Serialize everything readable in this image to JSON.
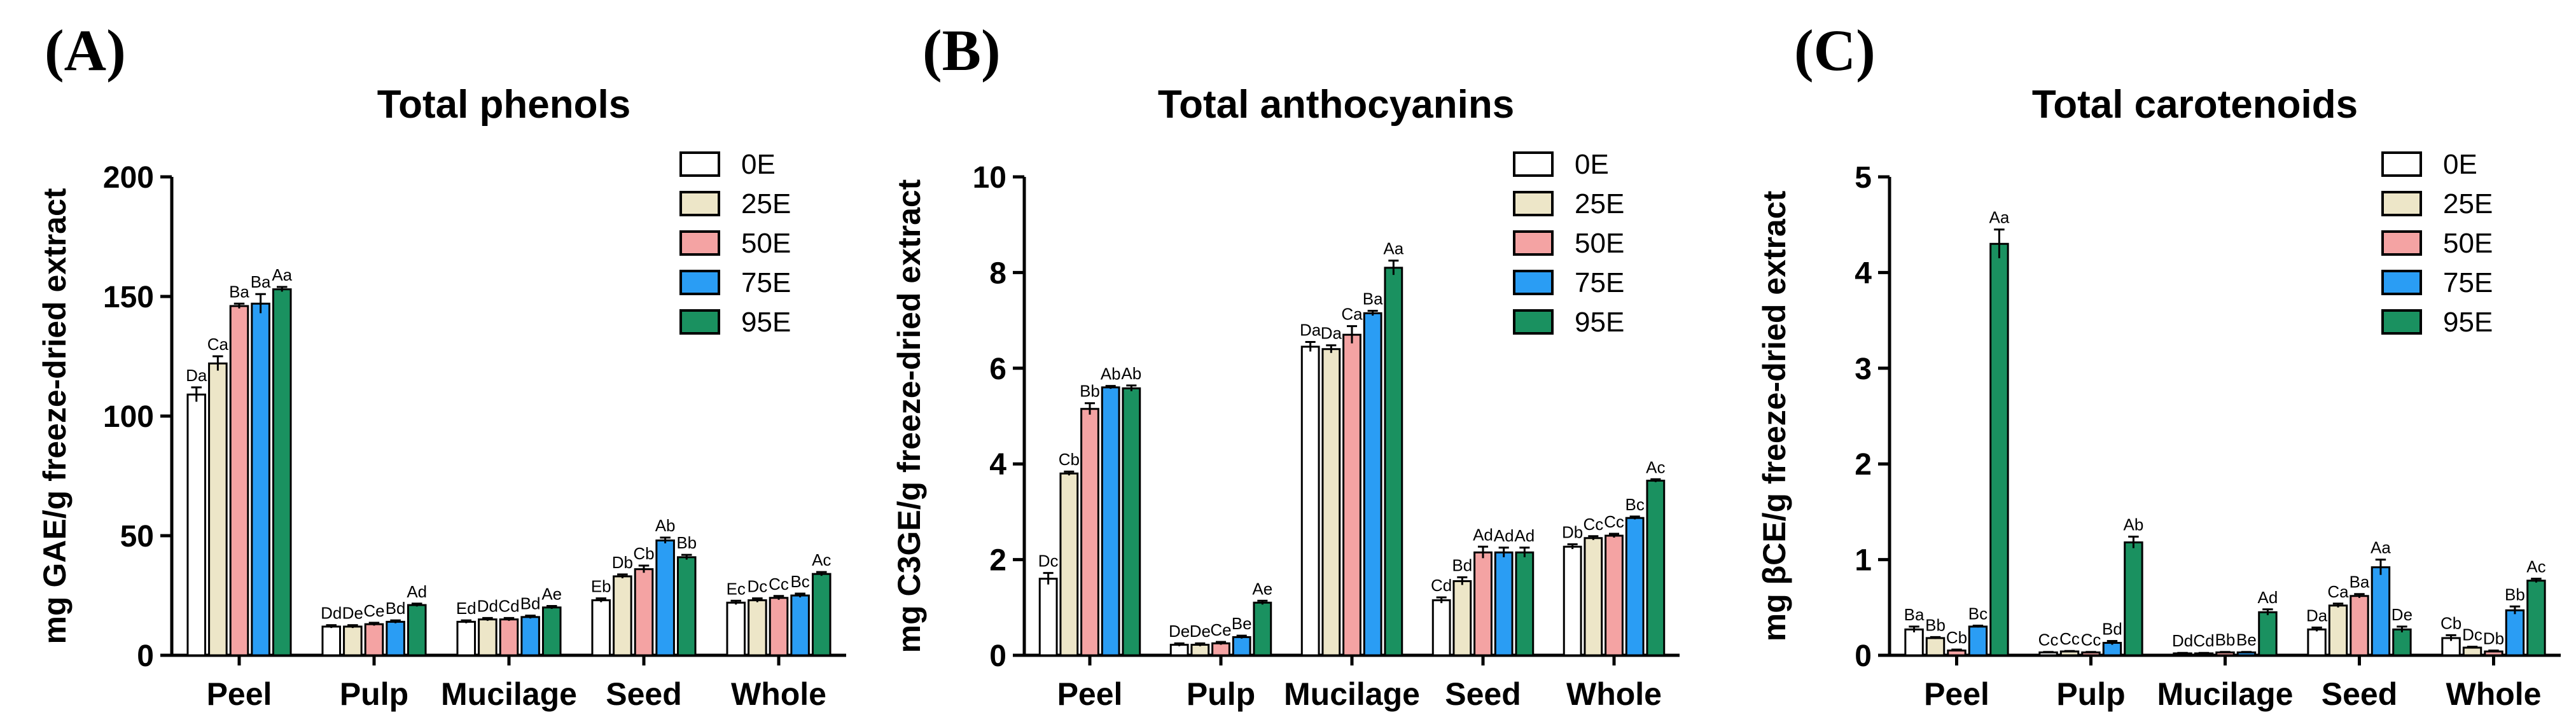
{
  "chart_data": [
    {
      "type": "bar",
      "panel": "(A)",
      "title": "Total phenols",
      "ylabel": "mg GAE/g freeze-dried extract",
      "ylim": [
        0,
        200
      ],
      "yticks": [
        0,
        50,
        100,
        150,
        200
      ],
      "categories": [
        "Peel",
        "Pulp",
        "Mucilage",
        "Seed",
        "Whole"
      ],
      "legend_position": "top-right",
      "series": [
        {
          "name": "0E",
          "color": "#ffffff",
          "values": [
            109,
            12,
            14,
            23,
            22
          ],
          "errors": [
            3,
            0.6,
            0.6,
            0.8,
            0.8
          ],
          "labels": [
            "Da",
            "Dd",
            "Ed",
            "Eb",
            "Ec"
          ]
        },
        {
          "name": "25E",
          "color": "#ede6c8",
          "values": [
            122,
            12,
            15,
            33,
            23
          ],
          "errors": [
            3,
            0.6,
            0.6,
            0.8,
            0.8
          ],
          "labels": [
            "Ca",
            "De",
            "Dd",
            "Db",
            "Dc"
          ]
        },
        {
          "name": "50E",
          "color": "#f4a3a3",
          "values": [
            146,
            13,
            15,
            36,
            24
          ],
          "errors": [
            1,
            0.6,
            0.6,
            1.5,
            0.8
          ],
          "labels": [
            "Ba",
            "Ce",
            "Cd",
            "Cb",
            "Cc"
          ]
        },
        {
          "name": "75E",
          "color": "#2a9df4",
          "values": [
            147,
            14,
            16,
            48,
            25
          ],
          "errors": [
            4,
            0.6,
            0.6,
            1.2,
            0.8
          ],
          "labels": [
            "Ba",
            "Bd",
            "Bd",
            "Ab",
            "Bc"
          ]
        },
        {
          "name": "95E",
          "color": "#1a9160",
          "values": [
            153,
            21,
            20,
            41,
            34
          ],
          "errors": [
            1,
            0.6,
            0.6,
            1.0,
            0.8
          ],
          "labels": [
            "Aa",
            "Ad",
            "Ae",
            "Bb",
            "Ac"
          ]
        }
      ]
    },
    {
      "type": "bar",
      "panel": "(B)",
      "title": "Total anthocyanins",
      "ylabel": "mg C3GE/g freeze-dried extract",
      "ylim": [
        0,
        10
      ],
      "yticks": [
        0,
        2,
        4,
        6,
        8,
        10
      ],
      "categories": [
        "Peel",
        "Pulp",
        "Mucilage",
        "Seed",
        "Whole"
      ],
      "legend_position": "top-right",
      "series": [
        {
          "name": "0E",
          "color": "#ffffff",
          "values": [
            1.6,
            0.22,
            6.45,
            1.15,
            2.27
          ],
          "errors": [
            0.12,
            0.03,
            0.1,
            0.06,
            0.05
          ],
          "labels": [
            "Dc",
            "De",
            "Da",
            "Cd",
            "Db"
          ]
        },
        {
          "name": "25E",
          "color": "#ede6c8",
          "values": [
            3.8,
            0.22,
            6.4,
            1.55,
            2.45
          ],
          "errors": [
            0.04,
            0.03,
            0.08,
            0.08,
            0.04
          ],
          "labels": [
            "Cb",
            "De",
            "Da",
            "Bd",
            "Cc"
          ]
        },
        {
          "name": "50E",
          "color": "#f4a3a3",
          "values": [
            5.15,
            0.25,
            6.7,
            2.15,
            2.5
          ],
          "errors": [
            0.12,
            0.03,
            0.18,
            0.12,
            0.04
          ],
          "labels": [
            "Bb",
            "Ce",
            "Ca",
            "Ad",
            "Cc"
          ]
        },
        {
          "name": "75E",
          "color": "#2a9df4",
          "values": [
            5.6,
            0.38,
            7.15,
            2.15,
            2.87
          ],
          "errors": [
            0.03,
            0.03,
            0.05,
            0.1,
            0.03
          ],
          "labels": [
            "Ab",
            "Be",
            "Ba",
            "Ad",
            "Bc"
          ]
        },
        {
          "name": "95E",
          "color": "#1a9160",
          "values": [
            5.58,
            1.1,
            8.1,
            2.15,
            3.65
          ],
          "errors": [
            0.06,
            0.04,
            0.15,
            0.1,
            0.03
          ],
          "labels": [
            "Ab",
            "Ae",
            "Aa",
            "Ad",
            "Ac"
          ]
        }
      ]
    },
    {
      "type": "bar",
      "panel": "(C)",
      "title": "Total carotenoids",
      "ylabel": "mg βCE/g freeze-dried extract",
      "ylim": [
        0,
        5
      ],
      "yticks": [
        0,
        1,
        2,
        3,
        4,
        5
      ],
      "categories": [
        "Peel",
        "Pulp",
        "Mucilage",
        "Seed",
        "Whole"
      ],
      "legend_position": "top-right",
      "series": [
        {
          "name": "0E",
          "color": "#ffffff",
          "values": [
            0.27,
            0.03,
            0.02,
            0.27,
            0.18
          ],
          "errors": [
            0.03,
            0.005,
            0.005,
            0.02,
            0.03
          ],
          "labels": [
            "Ba",
            "Cc",
            "Dd",
            "Da",
            "Cb"
          ]
        },
        {
          "name": "25E",
          "color": "#ede6c8",
          "values": [
            0.18,
            0.04,
            0.02,
            0.52,
            0.08
          ],
          "errors": [
            0.01,
            0.005,
            0.005,
            0.02,
            0.01
          ],
          "labels": [
            "Bb",
            "Cc",
            "Cd",
            "Ca",
            "Dc"
          ]
        },
        {
          "name": "50E",
          "color": "#f4a3a3",
          "values": [
            0.05,
            0.03,
            0.03,
            0.62,
            0.04
          ],
          "errors": [
            0.01,
            0.005,
            0.005,
            0.02,
            0.01
          ],
          "labels": [
            "Cb",
            "Cc",
            "Bb",
            "Ba",
            "Db"
          ]
        },
        {
          "name": "75E",
          "color": "#2a9df4",
          "values": [
            0.3,
            0.13,
            0.03,
            0.92,
            0.47
          ],
          "errors": [
            0.01,
            0.02,
            0.005,
            0.08,
            0.04
          ],
          "labels": [
            "Bc",
            "Bd",
            "Be",
            "Aa",
            "Bb"
          ]
        },
        {
          "name": "95E",
          "color": "#1a9160",
          "values": [
            4.3,
            1.18,
            0.45,
            0.27,
            0.78
          ],
          "errors": [
            0.15,
            0.06,
            0.03,
            0.03,
            0.02
          ],
          "labels": [
            "Aa",
            "Ab",
            "Ad",
            "De",
            "Ac"
          ]
        }
      ]
    }
  ]
}
